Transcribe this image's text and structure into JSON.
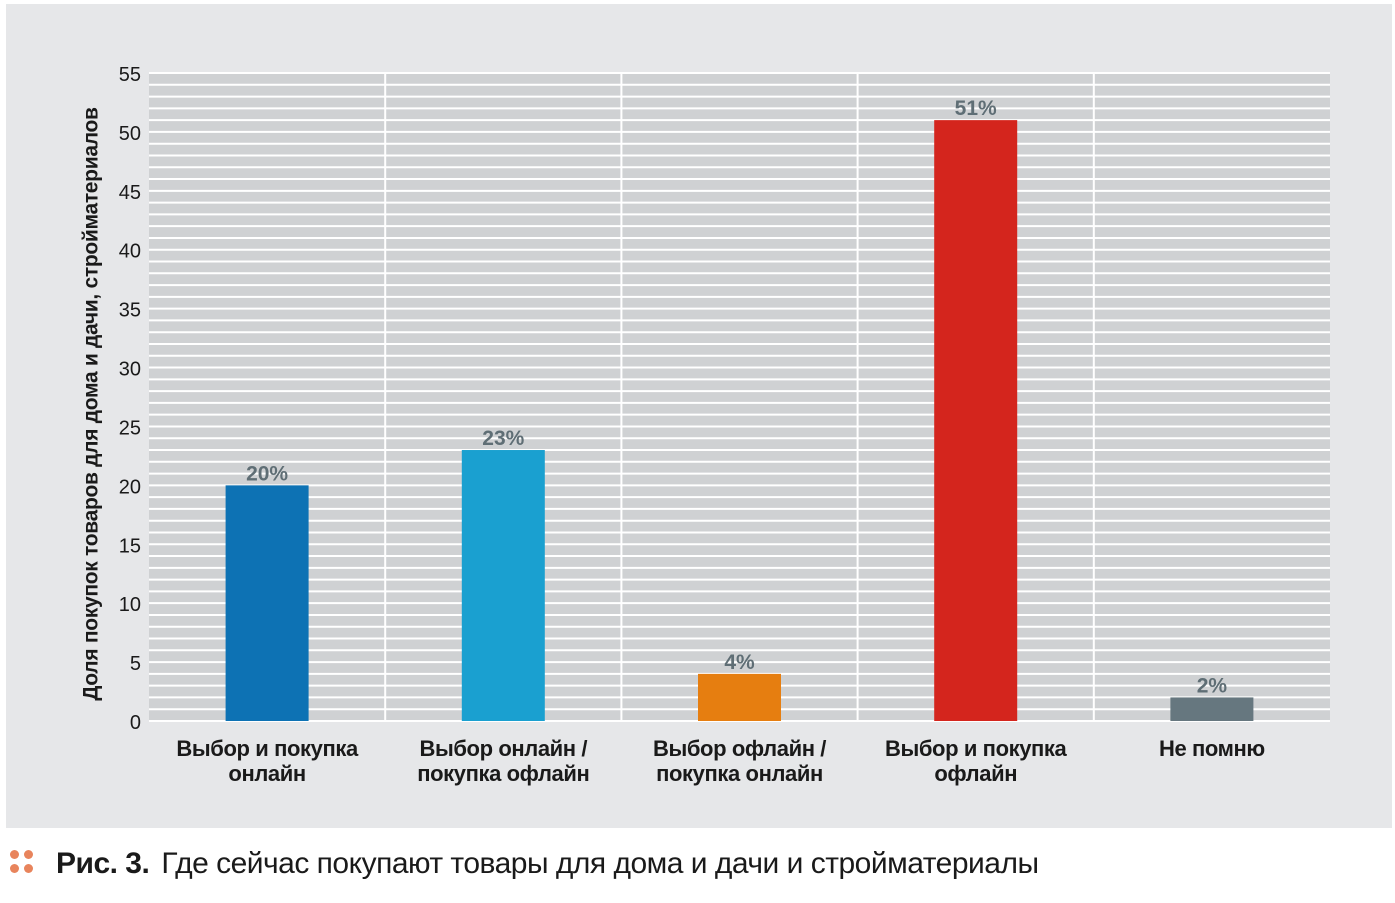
{
  "chart_data": {
    "type": "bar",
    "ylabel": "Доля покупок товаров для дома и дачи, стройматериалов",
    "xlabel": "",
    "ylim": [
      0,
      55
    ],
    "yticks": [
      0,
      5,
      10,
      15,
      20,
      25,
      30,
      35,
      40,
      45,
      50,
      55
    ],
    "minor_grid_step": 1,
    "categories": [
      [
        "Выбор и покупка",
        "онлайн"
      ],
      [
        "Выбор онлайн /",
        "покупка офлайн"
      ],
      [
        "Выбор офлайн /",
        "покупка онлайн"
      ],
      [
        "Выбор и покупка",
        "офлайн"
      ],
      [
        "Не помню"
      ]
    ],
    "values": [
      20,
      23,
      4,
      51,
      2
    ],
    "data_labels": [
      "20%",
      "23%",
      "4%",
      "51%",
      "2%"
    ],
    "colors": [
      "#0d72b4",
      "#1aa0d0",
      "#e67e10",
      "#d4251d",
      "#66777f"
    ]
  },
  "caption": {
    "number": "Рис. 3.",
    "text": "Где сейчас покупают товары для дома и дачи и стройматериалы"
  }
}
